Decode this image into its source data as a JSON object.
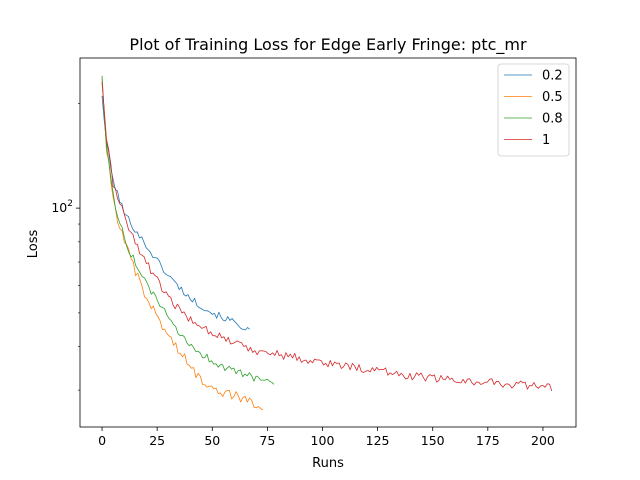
{
  "chart_data": {
    "type": "line",
    "title": "Plot of Training Loss for Edge Early Fringe: ptc_mr",
    "xlabel": "Runs",
    "ylabel": "Loss",
    "xlim": [
      -10,
      215
    ],
    "ylim": [
      23.5,
      270
    ],
    "yscale": "log",
    "x_ticks": [
      0,
      25,
      50,
      75,
      100,
      125,
      150,
      175,
      200
    ],
    "x_tick_labels": [
      "0",
      "25",
      "50",
      "75",
      "100",
      "125",
      "150",
      "175",
      "200"
    ],
    "y_ticks": [
      100
    ],
    "y_tick_labels": [
      "10",
      "2"
    ],
    "grid": false,
    "legend_position": "top-right",
    "series": [
      {
        "name": "0.2",
        "color": "#1f77b4",
        "n_points": 68,
        "x_start": 0,
        "x_end": 67,
        "y_start": 210,
        "y_end": 44,
        "curvature": 5.0,
        "noise": 0.01,
        "anchors": [
          [
            0,
            210
          ],
          [
            2,
            155
          ],
          [
            5,
            120
          ],
          [
            10,
            97
          ],
          [
            20,
            78
          ],
          [
            30,
            64
          ],
          [
            40,
            55
          ],
          [
            50,
            50
          ],
          [
            60,
            47
          ],
          [
            67,
            44.5
          ]
        ]
      },
      {
        "name": "0.5",
        "color": "#ff7f0e",
        "n_points": 73,
        "x_start": 0,
        "x_end": 73,
        "y_start": 235,
        "y_end": 27,
        "anchors": [
          [
            0,
            235
          ],
          [
            2,
            150
          ],
          [
            5,
            105
          ],
          [
            10,
            80
          ],
          [
            15,
            66
          ],
          [
            20,
            55
          ],
          [
            25,
            49
          ],
          [
            30,
            43
          ],
          [
            35,
            39
          ],
          [
            40,
            35
          ],
          [
            45,
            32
          ],
          [
            50,
            31
          ],
          [
            55,
            29.5
          ],
          [
            60,
            29
          ],
          [
            65,
            28
          ],
          [
            70,
            27.5
          ],
          [
            73,
            27
          ]
        ],
        "noise": 0.014
      },
      {
        "name": "0.8",
        "color": "#2ca02c",
        "n_points": 78,
        "x_start": 0,
        "x_end": 78,
        "y_start": 240,
        "y_end": 32,
        "anchors": [
          [
            0,
            240
          ],
          [
            2,
            150
          ],
          [
            5,
            108
          ],
          [
            10,
            82
          ],
          [
            15,
            70
          ],
          [
            20,
            60
          ],
          [
            25,
            55
          ],
          [
            30,
            48
          ],
          [
            35,
            43
          ],
          [
            40,
            40.5
          ],
          [
            45,
            38
          ],
          [
            50,
            36.5
          ],
          [
            55,
            35
          ],
          [
            60,
            34
          ],
          [
            65,
            33
          ],
          [
            70,
            32.5
          ],
          [
            78,
            32
          ]
        ],
        "noise": 0.012
      },
      {
        "name": "1",
        "color": "#d62728",
        "n_points": 204,
        "x_start": 0,
        "x_end": 204,
        "y_start": 230,
        "y_end": 30,
        "anchors": [
          [
            0,
            230
          ],
          [
            2,
            160
          ],
          [
            5,
            118
          ],
          [
            10,
            95
          ],
          [
            15,
            80
          ],
          [
            20,
            70
          ],
          [
            25,
            62
          ],
          [
            30,
            55
          ],
          [
            35,
            51
          ],
          [
            40,
            48
          ],
          [
            50,
            44
          ],
          [
            60,
            41
          ],
          [
            70,
            39
          ],
          [
            80,
            38
          ],
          [
            100,
            36
          ],
          [
            120,
            34.5
          ],
          [
            140,
            33
          ],
          [
            160,
            32
          ],
          [
            180,
            31.5
          ],
          [
            204,
            30.5
          ]
        ],
        "noise": 0.012
      }
    ]
  }
}
